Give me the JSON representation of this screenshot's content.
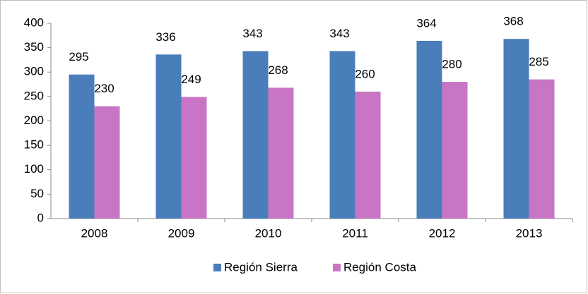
{
  "chart_data": {
    "type": "bar",
    "categories": [
      "2008",
      "2009",
      "2010",
      "2011",
      "2012",
      "2013"
    ],
    "series": [
      {
        "name": "Región Sierra",
        "color": "#4a7ebb",
        "values": [
          295,
          336,
          343,
          343,
          364,
          368
        ]
      },
      {
        "name": "Región Costa",
        "color": "#c975c5",
        "values": [
          230,
          249,
          268,
          260,
          280,
          285
        ]
      }
    ],
    "ylim": [
      0,
      400
    ],
    "yticks": [
      0,
      50,
      100,
      150,
      200,
      250,
      300,
      350,
      400
    ],
    "grid": false,
    "legend": "bottom",
    "value_labels_shown": true
  }
}
